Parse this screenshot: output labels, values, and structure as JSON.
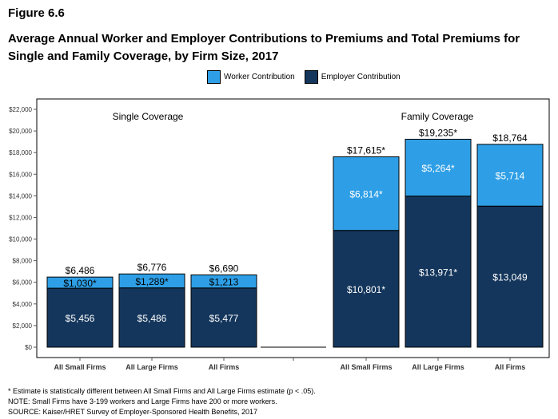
{
  "figure": {
    "label": "Figure 6.6",
    "title": "Average Annual Worker and Employer Contributions to Premiums and Total Premiums for Single and Family Coverage, by Firm Size, 2017"
  },
  "legend": {
    "worker": "Worker Contribution",
    "employer": "Employer Contribution"
  },
  "colors": {
    "worker": "#2e9fe6",
    "employer": "#14365c"
  },
  "chart_data": {
    "type": "bar",
    "stacked": true,
    "ylim": [
      0,
      22000
    ],
    "y_ticks": [
      "$0",
      "$2,000",
      "$4,000",
      "$6,000",
      "$8,000",
      "$10,000",
      "$12,000",
      "$14,000",
      "$16,000",
      "$18,000",
      "$20,000",
      "$22,000"
    ],
    "groups": [
      {
        "name": "Single Coverage",
        "bars": [
          {
            "category": "All Small Firms",
            "employer": 5456,
            "worker": 1030,
            "employer_label": "$5,456",
            "worker_label": "$1,030*",
            "total_label": "$6,486"
          },
          {
            "category": "All Large Firms",
            "employer": 5486,
            "worker": 1289,
            "employer_label": "$5,486",
            "worker_label": "$1,289*",
            "total_label": "$6,776"
          },
          {
            "category": "All Firms",
            "employer": 5477,
            "worker": 1213,
            "employer_label": "$5,477",
            "worker_label": "$1,213",
            "total_label": "$6,690"
          }
        ]
      },
      {
        "name": "Family Coverage",
        "bars": [
          {
            "category": "All Small Firms",
            "employer": 10801,
            "worker": 6814,
            "employer_label": "$10,801*",
            "worker_label": "$6,814*",
            "total_label": "$17,615*"
          },
          {
            "category": "All Large Firms",
            "employer": 13971,
            "worker": 5264,
            "employer_label": "$13,971*",
            "worker_label": "$5,264*",
            "total_label": "$19,235*"
          },
          {
            "category": "All Firms",
            "employer": 13049,
            "worker": 5714,
            "employer_label": "$13,049",
            "worker_label": "$5,714",
            "total_label": "$18,764"
          }
        ]
      }
    ]
  },
  "notes": [
    "* Estimate is statistically different between All Small Firms and All Large Firms estimate (p < .05).",
    "NOTE: Small Firms have 3-199 workers and Large Firms have 200 or more workers.",
    "SOURCE: Kaiser/HRET Survey of Employer-Sponsored Health Benefits, 2017"
  ]
}
